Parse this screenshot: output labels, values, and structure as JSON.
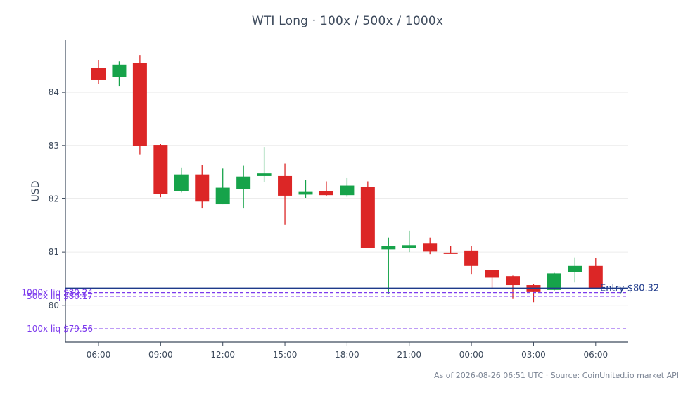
{
  "chart_data": {
    "type": "candlestick",
    "title": "WTI Long · 100x / 500x / 1000x",
    "ylabel": "USD",
    "xlabel": "",
    "ylim": [
      79.31,
      84.98
    ],
    "y_ticks": [
      80,
      81,
      82,
      83,
      84
    ],
    "x_ticks": [
      "06:00",
      "09:00",
      "12:00",
      "15:00",
      "18:00",
      "21:00",
      "00:00",
      "03:00",
      "06:00"
    ],
    "grid": true,
    "up_color": "#16a34a",
    "down_color": "#dc2626",
    "candles": [
      {
        "time": "06:00",
        "open": 84.46,
        "high": 84.61,
        "low": 84.16,
        "close": 84.24
      },
      {
        "time": "07:00",
        "open": 84.28,
        "high": 84.58,
        "low": 84.12,
        "close": 84.52
      },
      {
        "time": "08:00",
        "open": 84.55,
        "high": 84.7,
        "low": 82.83,
        "close": 82.99
      },
      {
        "time": "09:00",
        "open": 83.01,
        "high": 83.03,
        "low": 82.03,
        "close": 82.09
      },
      {
        "time": "10:00",
        "open": 82.15,
        "high": 82.59,
        "low": 82.12,
        "close": 82.46
      },
      {
        "time": "11:00",
        "open": 82.46,
        "high": 82.64,
        "low": 81.82,
        "close": 81.95
      },
      {
        "time": "12:00",
        "open": 81.9,
        "high": 82.57,
        "low": 81.9,
        "close": 82.21
      },
      {
        "time": "13:00",
        "open": 82.18,
        "high": 82.62,
        "low": 81.82,
        "close": 82.42
      },
      {
        "time": "14:00",
        "open": 82.43,
        "high": 82.97,
        "low": 82.31,
        "close": 82.48
      },
      {
        "time": "15:00",
        "open": 82.43,
        "high": 82.66,
        "low": 81.52,
        "close": 82.06
      },
      {
        "time": "16:00",
        "open": 82.08,
        "high": 82.35,
        "low": 82.01,
        "close": 82.13
      },
      {
        "time": "17:00",
        "open": 82.14,
        "high": 82.33,
        "low": 82.05,
        "close": 82.07
      },
      {
        "time": "18:00",
        "open": 82.07,
        "high": 82.39,
        "low": 82.04,
        "close": 82.25
      },
      {
        "time": "19:00",
        "open": 82.23,
        "high": 82.33,
        "low": 81.07,
        "close": 81.07
      },
      {
        "time": "20:00",
        "open": 81.05,
        "high": 81.27,
        "low": 80.21,
        "close": 81.11
      },
      {
        "time": "21:00",
        "open": 81.07,
        "high": 81.4,
        "low": 81.0,
        "close": 81.13
      },
      {
        "time": "22:00",
        "open": 81.17,
        "high": 81.27,
        "low": 80.96,
        "close": 81.01
      },
      {
        "time": "23:00",
        "open": 80.99,
        "high": 81.12,
        "low": 80.97,
        "close": 80.98
      },
      {
        "time": "00:00",
        "open": 81.03,
        "high": 81.11,
        "low": 80.59,
        "close": 80.74
      },
      {
        "time": "01:00",
        "open": 80.66,
        "high": 80.67,
        "low": 80.33,
        "close": 80.52
      },
      {
        "time": "02:00",
        "open": 80.55,
        "high": 80.56,
        "low": 80.12,
        "close": 80.38
      },
      {
        "time": "03:00",
        "open": 80.38,
        "high": 80.4,
        "low": 80.06,
        "close": 80.25
      },
      {
        "time": "04:00",
        "open": 80.29,
        "high": 80.61,
        "low": 80.28,
        "close": 80.6
      },
      {
        "time": "05:00",
        "open": 80.62,
        "high": 80.9,
        "low": 80.43,
        "close": 80.74
      },
      {
        "time": "06:00",
        "open": 80.74,
        "high": 80.89,
        "low": 80.32,
        "close": 80.32
      }
    ],
    "reference_lines": [
      {
        "label": "Entry $80.32",
        "value": 80.32,
        "style": "solid",
        "color": "#1e3a8a"
      },
      {
        "label": "1000x liq $80.24",
        "value": 80.24,
        "style": "dashed",
        "color": "#7c3aed"
      },
      {
        "label": "500x liq $80.17",
        "value": 80.17,
        "style": "dashed",
        "color": "#7c3aed"
      },
      {
        "label": "100x liq $79.56",
        "value": 79.56,
        "style": "dashed",
        "color": "#7c3aed"
      }
    ]
  },
  "footer": "As of 2026-08-26 06:51 UTC · Source: CoinUnited.io market API"
}
